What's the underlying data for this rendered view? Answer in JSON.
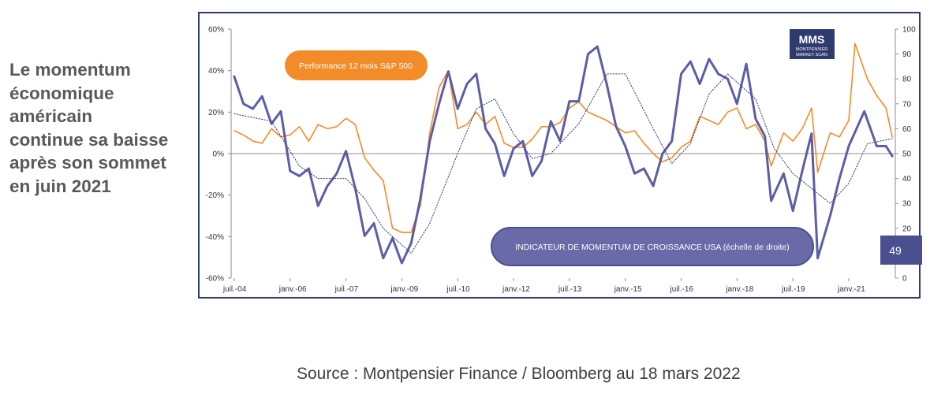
{
  "headline": {
    "lines": [
      "Le momentum",
      "économique",
      "américain",
      "continue sa baisse",
      "après son sommet",
      "en juin 2021"
    ]
  },
  "source": "Source : Montpensier Finance / Bloomberg au 18 mars 2022",
  "logo": {
    "text": "MMS",
    "sub1": "MONTPENSIER",
    "sub2": "MARKET SCAN"
  },
  "badges": {
    "sp500": "Performance 12 mois S&P 500",
    "indicator": "INDICATEUR DE MOMENTUM DE CROISSANCE USA (échelle de droite)",
    "last_value": "49"
  },
  "colors": {
    "sp500": "#f28c28",
    "indicator": "#5b5ea6",
    "trend": "#3a3f7a",
    "frame": "#2f3b6f",
    "badge_orange": "#f28c28",
    "badge_purple": "#6a6aa8",
    "value_box": "#4a4f8f"
  },
  "chart_data": {
    "type": "line",
    "x_tick_labels": [
      "juil.-04",
      "janv.-06",
      "juil.-07",
      "janv.-09",
      "juil.-10",
      "janv.-12",
      "juil.-13",
      "janv.-15",
      "juil.-16",
      "janv.-18",
      "juil.-19",
      "janv.-21"
    ],
    "x_range": [
      "2004-07",
      "2022-03"
    ],
    "y_left": {
      "range": [
        -60,
        60
      ],
      "ticks": [
        "60%",
        "40%",
        "20%",
        "0%",
        "-20%",
        "-40%",
        "-60%"
      ]
    },
    "y_right": {
      "range": [
        0,
        100
      ],
      "ticks": [
        "100",
        "90",
        "80",
        "70",
        "60",
        "50",
        "40",
        "30",
        "20",
        "10",
        "0"
      ]
    },
    "grid": false,
    "series": [
      {
        "name": "Performance 12 mois S&P 500",
        "axis": "left",
        "points": [
          [
            "2004-07",
            11
          ],
          [
            "2004-10",
            9
          ],
          [
            "2005-01",
            6
          ],
          [
            "2005-04",
            5
          ],
          [
            "2005-07",
            12
          ],
          [
            "2005-10",
            8
          ],
          [
            "2006-01",
            9
          ],
          [
            "2006-04",
            13
          ],
          [
            "2006-07",
            6
          ],
          [
            "2006-10",
            14
          ],
          [
            "2007-01",
            12
          ],
          [
            "2007-04",
            13
          ],
          [
            "2007-07",
            17
          ],
          [
            "2007-10",
            14
          ],
          [
            "2008-01",
            -2
          ],
          [
            "2008-04",
            -8
          ],
          [
            "2008-07",
            -13
          ],
          [
            "2008-10",
            -36
          ],
          [
            "2009-01",
            -38
          ],
          [
            "2009-04",
            -38
          ],
          [
            "2009-07",
            -25
          ],
          [
            "2009-10",
            10
          ],
          [
            "2010-01",
            32
          ],
          [
            "2010-04",
            40
          ],
          [
            "2010-07",
            12
          ],
          [
            "2010-10",
            14
          ],
          [
            "2011-01",
            20
          ],
          [
            "2011-04",
            14
          ],
          [
            "2011-07",
            18
          ],
          [
            "2011-10",
            5
          ],
          [
            "2012-01",
            3
          ],
          [
            "2012-04",
            3
          ],
          [
            "2012-07",
            7
          ],
          [
            "2012-10",
            13
          ],
          [
            "2013-01",
            13
          ],
          [
            "2013-04",
            15
          ],
          [
            "2013-07",
            22
          ],
          [
            "2013-10",
            25
          ],
          [
            "2014-01",
            20
          ],
          [
            "2014-04",
            18
          ],
          [
            "2014-07",
            16
          ],
          [
            "2014-10",
            13
          ],
          [
            "2015-01",
            10
          ],
          [
            "2015-04",
            11
          ],
          [
            "2015-07",
            5
          ],
          [
            "2015-10",
            0
          ],
          [
            "2016-01",
            -4
          ],
          [
            "2016-04",
            -2
          ],
          [
            "2016-07",
            3
          ],
          [
            "2016-10",
            6
          ],
          [
            "2017-01",
            18
          ],
          [
            "2017-04",
            16
          ],
          [
            "2017-07",
            14
          ],
          [
            "2017-10",
            20
          ],
          [
            "2018-01",
            22
          ],
          [
            "2018-04",
            12
          ],
          [
            "2018-07",
            14
          ],
          [
            "2018-10",
            6
          ],
          [
            "2018-12",
            -6
          ],
          [
            "2019-04",
            10
          ],
          [
            "2019-07",
            6
          ],
          [
            "2019-10",
            12
          ],
          [
            "2020-01",
            22
          ],
          [
            "2020-03",
            -9
          ],
          [
            "2020-07",
            10
          ],
          [
            "2020-10",
            8
          ],
          [
            "2021-01",
            16
          ],
          [
            "2021-03",
            53
          ],
          [
            "2021-07",
            36
          ],
          [
            "2021-10",
            28
          ],
          [
            "2022-01",
            22
          ],
          [
            "2022-03",
            8
          ]
        ]
      },
      {
        "name": "INDICATEUR DE MOMENTUM DE CROISSANCE USA",
        "axis": "right",
        "points": [
          [
            "2004-07",
            81
          ],
          [
            "2004-10",
            70
          ],
          [
            "2005-01",
            68
          ],
          [
            "2005-04",
            73
          ],
          [
            "2005-07",
            62
          ],
          [
            "2005-10",
            67
          ],
          [
            "2006-01",
            43
          ],
          [
            "2006-04",
            41
          ],
          [
            "2006-07",
            44
          ],
          [
            "2006-10",
            29
          ],
          [
            "2007-01",
            37
          ],
          [
            "2007-04",
            42
          ],
          [
            "2007-07",
            51
          ],
          [
            "2007-10",
            36
          ],
          [
            "2008-01",
            17
          ],
          [
            "2008-04",
            22
          ],
          [
            "2008-07",
            8
          ],
          [
            "2008-10",
            16
          ],
          [
            "2009-01",
            6
          ],
          [
            "2009-04",
            14
          ],
          [
            "2009-07",
            32
          ],
          [
            "2009-10",
            55
          ],
          [
            "2010-01",
            70
          ],
          [
            "2010-04",
            83
          ],
          [
            "2010-07",
            68
          ],
          [
            "2010-10",
            78
          ],
          [
            "2011-01",
            82
          ],
          [
            "2011-04",
            60
          ],
          [
            "2011-07",
            54
          ],
          [
            "2011-10",
            41
          ],
          [
            "2012-01",
            52
          ],
          [
            "2012-04",
            55
          ],
          [
            "2012-07",
            41
          ],
          [
            "2012-10",
            47
          ],
          [
            "2013-01",
            63
          ],
          [
            "2013-04",
            55
          ],
          [
            "2013-07",
            71
          ],
          [
            "2013-10",
            71
          ],
          [
            "2014-01",
            90
          ],
          [
            "2014-04",
            93
          ],
          [
            "2014-07",
            78
          ],
          [
            "2014-10",
            61
          ],
          [
            "2015-01",
            53
          ],
          [
            "2015-04",
            42
          ],
          [
            "2015-07",
            44
          ],
          [
            "2015-10",
            37
          ],
          [
            "2016-01",
            50
          ],
          [
            "2016-04",
            55
          ],
          [
            "2016-07",
            82
          ],
          [
            "2016-10",
            87
          ],
          [
            "2017-01",
            78
          ],
          [
            "2017-04",
            88
          ],
          [
            "2017-07",
            82
          ],
          [
            "2017-10",
            80
          ],
          [
            "2018-01",
            70
          ],
          [
            "2018-04",
            86
          ],
          [
            "2018-07",
            64
          ],
          [
            "2018-10",
            57
          ],
          [
            "2018-12",
            31
          ],
          [
            "2019-04",
            42
          ],
          [
            "2019-07",
            27
          ],
          [
            "2019-10",
            43
          ],
          [
            "2020-01",
            58
          ],
          [
            "2020-03",
            8
          ],
          [
            "2020-07",
            25
          ],
          [
            "2020-10",
            40
          ],
          [
            "2021-01",
            53
          ],
          [
            "2021-06",
            67
          ],
          [
            "2021-10",
            53
          ],
          [
            "2022-01",
            53
          ],
          [
            "2022-03",
            49
          ]
        ]
      },
      {
        "axis": "right",
        "style": "dotted",
        "points": [
          [
            "2004-07",
            66
          ],
          [
            "2005-07",
            63
          ],
          [
            "2006-04",
            45
          ],
          [
            "2006-10",
            40
          ],
          [
            "2007-07",
            40
          ],
          [
            "2008-01",
            32
          ],
          [
            "2008-07",
            20
          ],
          [
            "2009-04",
            10
          ],
          [
            "2009-10",
            22
          ],
          [
            "2010-07",
            50
          ],
          [
            "2011-01",
            68
          ],
          [
            "2011-07",
            72
          ],
          [
            "2012-01",
            58
          ],
          [
            "2012-07",
            48
          ],
          [
            "2013-01",
            50
          ],
          [
            "2013-10",
            62
          ],
          [
            "2014-07",
            82
          ],
          [
            "2015-01",
            82
          ],
          [
            "2015-10",
            60
          ],
          [
            "2016-04",
            46
          ],
          [
            "2016-10",
            54
          ],
          [
            "2017-04",
            74
          ],
          [
            "2017-10",
            82
          ],
          [
            "2018-07",
            72
          ],
          [
            "2019-01",
            52
          ],
          [
            "2019-07",
            42
          ],
          [
            "2020-01",
            36
          ],
          [
            "2020-07",
            30
          ],
          [
            "2021-01",
            38
          ],
          [
            "2021-07",
            54
          ],
          [
            "2022-03",
            56
          ]
        ]
      }
    ]
  }
}
